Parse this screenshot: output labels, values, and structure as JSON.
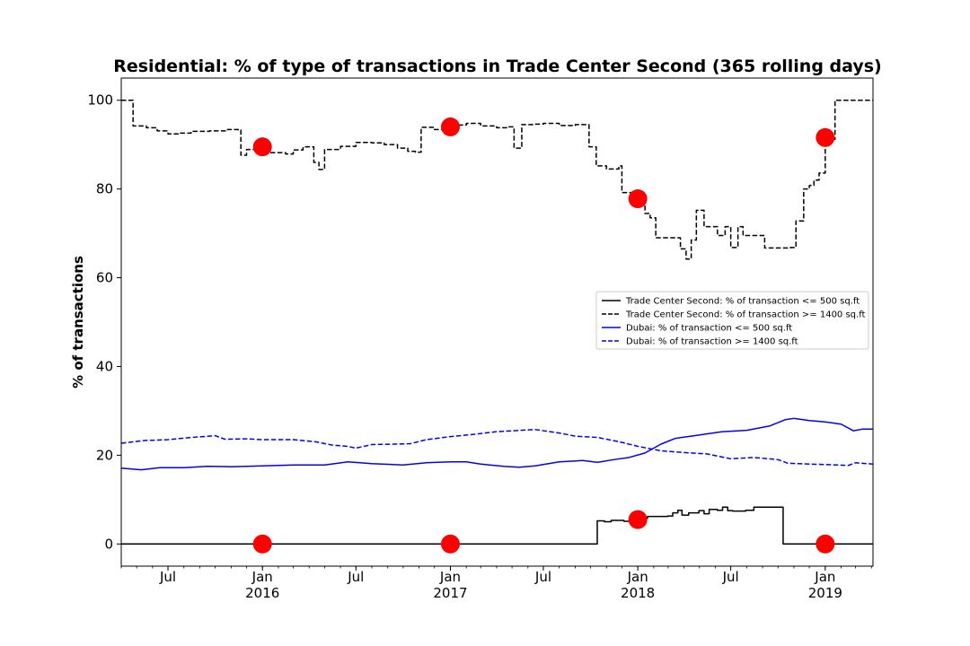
{
  "chart_data": {
    "type": "line",
    "title": "Residential: % of type of transactions in Trade Center Second (365 rolling days)",
    "xlabel": "",
    "ylabel": "% of transactions",
    "xlim": [
      "2015-04-01",
      "2019-04-04"
    ],
    "ylim": [
      -5,
      105
    ],
    "y_ticks": [
      0,
      20,
      40,
      60,
      80,
      100
    ],
    "x_ticks": [
      {
        "date": "2015-07-01",
        "label": "Jul",
        "year": ""
      },
      {
        "date": "2016-01-01",
        "label": "Jan",
        "year": "2016"
      },
      {
        "date": "2016-07-01",
        "label": "Jul",
        "year": ""
      },
      {
        "date": "2017-01-01",
        "label": "Jan",
        "year": "2017"
      },
      {
        "date": "2017-07-01",
        "label": "Jul",
        "year": ""
      },
      {
        "date": "2018-01-01",
        "label": "Jan",
        "year": "2018"
      },
      {
        "date": "2018-07-01",
        "label": "Jul",
        "year": ""
      },
      {
        "date": "2019-01-01",
        "label": "Jan",
        "year": "2019"
      }
    ],
    "grid": false,
    "legend_position": "center-right",
    "series": [
      {
        "name": "Trade Center Second: % of transaction <= 500 sq.ft",
        "color": "#000000",
        "style": "solid",
        "step": true,
        "points": [
          [
            "2015-04-01",
            0
          ],
          [
            "2017-10-13",
            0
          ],
          [
            "2017-10-14",
            5.2
          ],
          [
            "2017-10-28",
            5.0
          ],
          [
            "2017-11-10",
            5.3
          ],
          [
            "2017-12-05",
            5.1
          ],
          [
            "2017-12-25",
            5.5
          ],
          [
            "2018-01-10",
            5.8
          ],
          [
            "2018-01-20",
            6.2
          ],
          [
            "2018-02-28",
            6.3
          ],
          [
            "2018-03-10",
            7.0
          ],
          [
            "2018-03-20",
            7.6
          ],
          [
            "2018-03-28",
            6.5
          ],
          [
            "2018-04-10",
            7.0
          ],
          [
            "2018-04-30",
            7.5
          ],
          [
            "2018-05-10",
            6.8
          ],
          [
            "2018-05-20",
            7.8
          ],
          [
            "2018-06-05",
            7.6
          ],
          [
            "2018-06-15",
            8.3
          ],
          [
            "2018-06-25",
            7.5
          ],
          [
            "2018-07-05",
            7.4
          ],
          [
            "2018-07-30",
            7.6
          ],
          [
            "2018-08-15",
            8.3
          ],
          [
            "2018-10-10",
            8.3
          ],
          [
            "2018-10-11",
            0
          ],
          [
            "2019-04-04",
            0
          ]
        ]
      },
      {
        "name": "Trade Center Second: % of transaction >= 1400 sq.ft",
        "color": "#000000",
        "style": "dashed",
        "step": true,
        "points": [
          [
            "2015-04-01",
            100
          ],
          [
            "2015-04-23",
            100
          ],
          [
            "2015-04-24",
            94.2
          ],
          [
            "2015-05-20",
            93.8
          ],
          [
            "2015-06-10",
            93.1
          ],
          [
            "2015-07-01",
            92.4
          ],
          [
            "2015-07-25",
            92.6
          ],
          [
            "2015-08-15",
            93.0
          ],
          [
            "2015-09-20",
            93.1
          ],
          [
            "2015-10-25",
            93.4
          ],
          [
            "2015-11-15",
            93.3
          ],
          [
            "2015-11-20",
            87.6
          ],
          [
            "2015-12-01",
            88.9
          ],
          [
            "2016-01-10",
            89.0
          ],
          [
            "2016-01-15",
            88.2
          ],
          [
            "2016-02-15",
            87.9
          ],
          [
            "2016-03-01",
            88.8
          ],
          [
            "2016-03-20",
            89.5
          ],
          [
            "2016-04-10",
            86.0
          ],
          [
            "2016-04-20",
            84.4
          ],
          [
            "2016-05-01",
            88.9
          ],
          [
            "2016-06-01",
            89.6
          ],
          [
            "2016-07-01",
            90.5
          ],
          [
            "2016-08-01",
            90.4
          ],
          [
            "2016-08-25",
            90.0
          ],
          [
            "2016-09-20",
            89.2
          ],
          [
            "2016-10-10",
            88.5
          ],
          [
            "2016-10-25",
            88.3
          ],
          [
            "2016-11-05",
            93.9
          ],
          [
            "2016-12-01",
            93.4
          ],
          [
            "2017-01-01",
            94.4
          ],
          [
            "2017-02-01",
            94.8
          ],
          [
            "2017-03-01",
            94.2
          ],
          [
            "2017-04-01",
            93.8
          ],
          [
            "2017-04-25",
            94.0
          ],
          [
            "2017-05-05",
            89.2
          ],
          [
            "2017-05-20",
            94.5
          ],
          [
            "2017-06-10",
            94.6
          ],
          [
            "2017-07-01",
            94.8
          ],
          [
            "2017-08-01",
            94.3
          ],
          [
            "2017-09-01",
            94.5
          ],
          [
            "2017-09-15",
            94.5
          ],
          [
            "2017-09-28",
            89.5
          ],
          [
            "2017-10-12",
            85.2
          ],
          [
            "2017-11-01",
            84.5
          ],
          [
            "2017-11-25",
            85.2
          ],
          [
            "2017-12-01",
            79.2
          ],
          [
            "2017-12-20",
            79.0
          ],
          [
            "2018-01-01",
            77.0
          ],
          [
            "2018-01-15",
            74.5
          ],
          [
            "2018-01-25",
            73.5
          ],
          [
            "2018-02-05",
            69.0
          ],
          [
            "2018-03-10",
            69.0
          ],
          [
            "2018-03-25",
            66.5
          ],
          [
            "2018-04-05",
            64.2
          ],
          [
            "2018-04-15",
            68.5
          ],
          [
            "2018-04-25",
            75.2
          ],
          [
            "2018-05-10",
            71.5
          ],
          [
            "2018-06-05",
            69.5
          ],
          [
            "2018-06-20",
            71.5
          ],
          [
            "2018-07-01",
            66.8
          ],
          [
            "2018-07-15",
            71.5
          ],
          [
            "2018-07-25",
            69.5
          ],
          [
            "2018-09-01",
            69.5
          ],
          [
            "2018-09-05",
            66.7
          ],
          [
            "2018-10-25",
            66.8
          ],
          [
            "2018-11-05",
            72.8
          ],
          [
            "2018-11-20",
            80.0
          ],
          [
            "2018-12-01",
            80.8
          ],
          [
            "2018-12-10",
            82.0
          ],
          [
            "2018-12-20",
            83.6
          ],
          [
            "2019-01-01",
            91.2
          ],
          [
            "2019-01-20",
            100
          ],
          [
            "2019-04-04",
            100
          ]
        ]
      },
      {
        "name": "Dubai: % of transaction <= 500 sq.ft",
        "color": "#0000ff",
        "style": "solid",
        "step": false,
        "points": [
          [
            "2015-04-01",
            17.1
          ],
          [
            "2015-05-10",
            16.7
          ],
          [
            "2015-06-15",
            17.2
          ],
          [
            "2015-08-01",
            17.2
          ],
          [
            "2015-09-15",
            17.5
          ],
          [
            "2015-11-01",
            17.4
          ],
          [
            "2016-01-01",
            17.6
          ],
          [
            "2016-03-01",
            17.8
          ],
          [
            "2016-05-01",
            17.8
          ],
          [
            "2016-06-15",
            18.5
          ],
          [
            "2016-08-01",
            18.1
          ],
          [
            "2016-10-01",
            17.8
          ],
          [
            "2016-11-15",
            18.3
          ],
          [
            "2017-01-01",
            18.5
          ],
          [
            "2017-02-01",
            18.5
          ],
          [
            "2017-03-01",
            18.0
          ],
          [
            "2017-04-15",
            17.5
          ],
          [
            "2017-05-15",
            17.3
          ],
          [
            "2017-06-15",
            17.6
          ],
          [
            "2017-08-01",
            18.5
          ],
          [
            "2017-09-15",
            18.8
          ],
          [
            "2017-10-15",
            18.4
          ],
          [
            "2017-11-15",
            19.0
          ],
          [
            "2017-12-15",
            19.5
          ],
          [
            "2018-01-15",
            20.5
          ],
          [
            "2018-02-15",
            22.5
          ],
          [
            "2018-03-15",
            23.8
          ],
          [
            "2018-04-15",
            24.3
          ],
          [
            "2018-05-15",
            24.8
          ],
          [
            "2018-06-15",
            25.3
          ],
          [
            "2018-08-01",
            25.6
          ],
          [
            "2018-09-15",
            26.6
          ],
          [
            "2018-10-15",
            28.0
          ],
          [
            "2018-11-01",
            28.3
          ],
          [
            "2018-12-01",
            27.8
          ],
          [
            "2019-01-01",
            27.5
          ],
          [
            "2019-02-01",
            27.0
          ],
          [
            "2019-02-25",
            25.5
          ],
          [
            "2019-03-15",
            25.9
          ],
          [
            "2019-04-04",
            25.9
          ]
        ]
      },
      {
        "name": "Dubai: % of transaction >= 1400 sq.ft",
        "color": "#0000ff",
        "style": "dashed",
        "step": false,
        "points": [
          [
            "2015-04-01",
            22.7
          ],
          [
            "2015-05-15",
            23.3
          ],
          [
            "2015-07-01",
            23.5
          ],
          [
            "2015-08-15",
            24.0
          ],
          [
            "2015-10-01",
            24.4
          ],
          [
            "2015-10-20",
            23.6
          ],
          [
            "2015-12-01",
            23.7
          ],
          [
            "2016-01-01",
            23.5
          ],
          [
            "2016-03-01",
            23.5
          ],
          [
            "2016-04-15",
            23.0
          ],
          [
            "2016-05-15",
            22.3
          ],
          [
            "2016-06-15",
            22.0
          ],
          [
            "2016-07-01",
            21.6
          ],
          [
            "2016-08-01",
            22.4
          ],
          [
            "2016-09-15",
            22.5
          ],
          [
            "2016-10-15",
            22.6
          ],
          [
            "2016-11-15",
            23.5
          ],
          [
            "2017-01-01",
            24.2
          ],
          [
            "2017-02-15",
            24.7
          ],
          [
            "2017-04-01",
            25.3
          ],
          [
            "2017-06-15",
            25.8
          ],
          [
            "2017-08-01",
            25.0
          ],
          [
            "2017-09-01",
            24.3
          ],
          [
            "2017-10-15",
            24.0
          ],
          [
            "2017-12-01",
            22.9
          ],
          [
            "2018-01-01",
            22.0
          ],
          [
            "2018-02-15",
            21.0
          ],
          [
            "2018-04-01",
            20.6
          ],
          [
            "2018-05-15",
            20.3
          ],
          [
            "2018-07-01",
            19.2
          ],
          [
            "2018-08-15",
            19.5
          ],
          [
            "2018-10-01",
            19.0
          ],
          [
            "2018-10-20",
            18.2
          ],
          [
            "2018-12-01",
            18.0
          ],
          [
            "2019-01-01",
            17.9
          ],
          [
            "2019-02-15",
            17.7
          ],
          [
            "2019-03-01",
            18.3
          ],
          [
            "2019-04-04",
            18.0
          ]
        ]
      }
    ],
    "markers": {
      "color": "#ff0000",
      "points": [
        [
          "2016-01-01",
          89.5
        ],
        [
          "2017-01-01",
          94.0
        ],
        [
          "2018-01-01",
          77.8
        ],
        [
          "2019-01-01",
          91.6
        ],
        [
          "2016-01-01",
          0
        ],
        [
          "2017-01-01",
          0
        ],
        [
          "2018-01-01",
          5.5
        ],
        [
          "2019-01-01",
          0
        ]
      ]
    }
  }
}
